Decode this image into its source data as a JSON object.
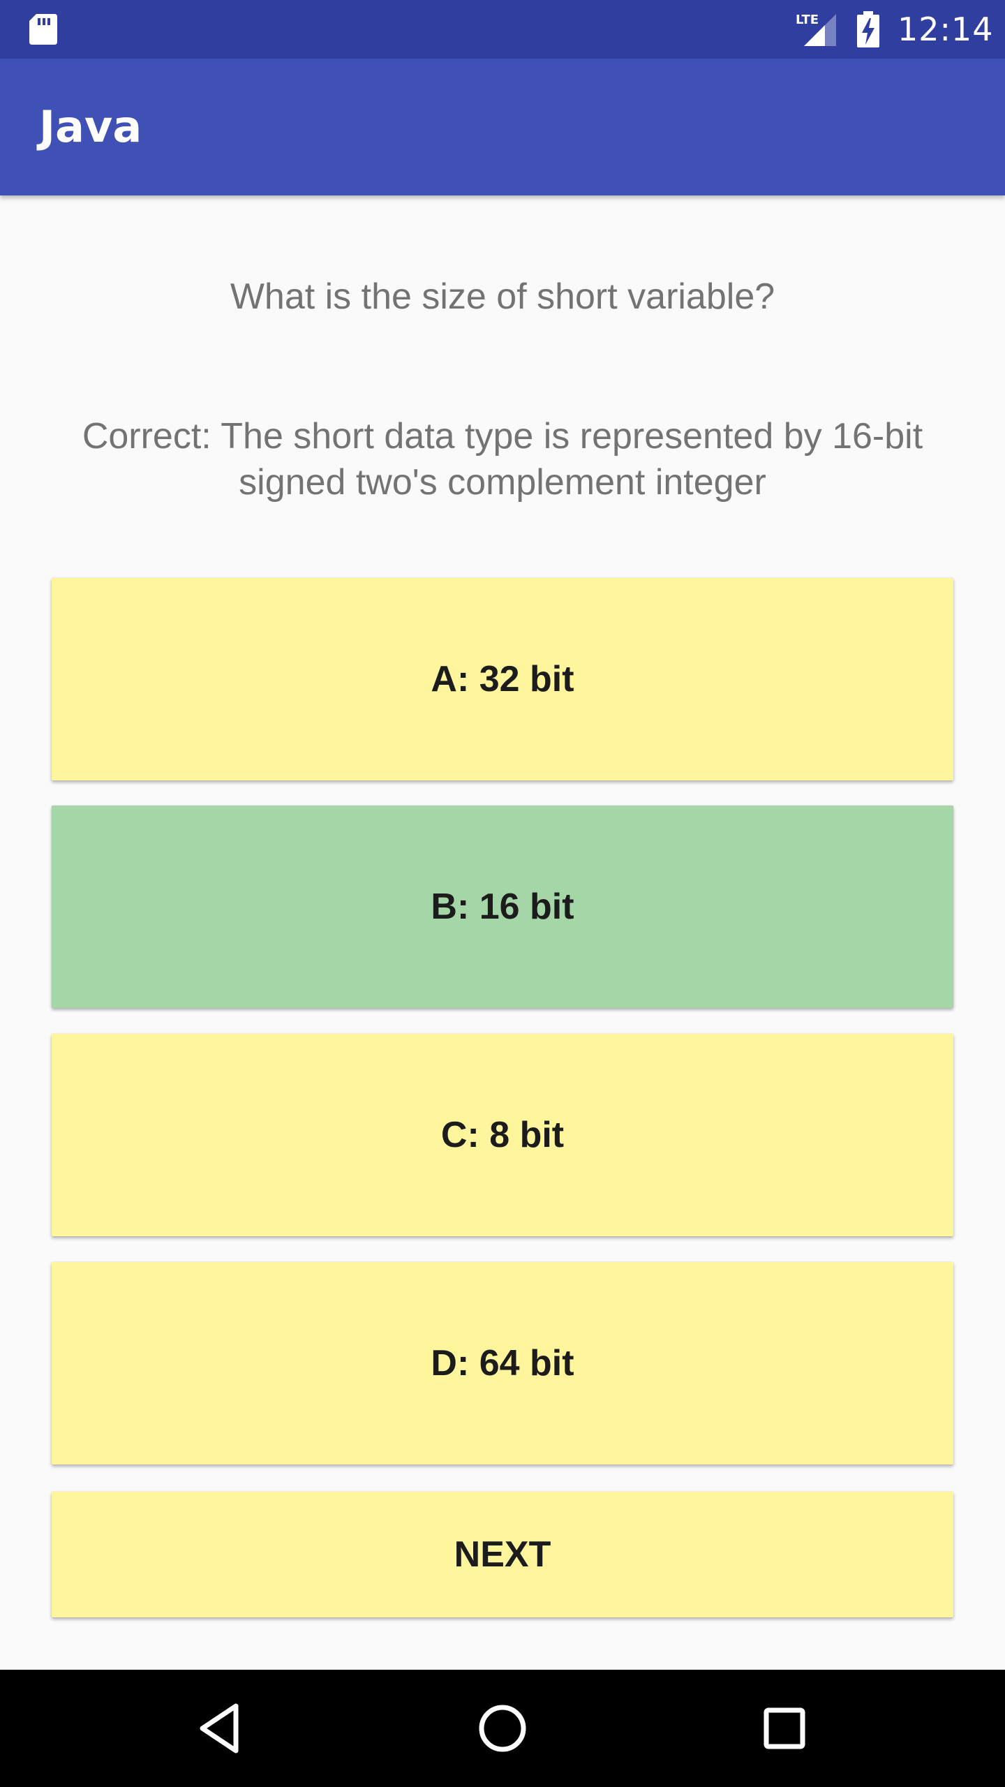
{
  "status_bar": {
    "time": "12:14",
    "network": "LTE",
    "icons": [
      "sd-card-icon",
      "signal-icon",
      "battery-charging-icon"
    ]
  },
  "app_bar": {
    "title": "Java"
  },
  "quiz": {
    "question": "What is the size of short variable?",
    "feedback": "Correct: The short data type is represented by 16-bit signed two's complement integer",
    "answers": [
      {
        "label": "A: 32 bit",
        "color": "#fff59d"
      },
      {
        "label": "B: 16 bit",
        "color": "#a5d6a7"
      },
      {
        "label": "C: 8 bit",
        "color": "#fff59d"
      },
      {
        "label": "D: 64 bit",
        "color": "#fff59d"
      }
    ],
    "next_label": "NEXT",
    "next_color": "#fff59d"
  },
  "nav_bar": {
    "icons": [
      "back-icon",
      "home-icon",
      "recents-icon"
    ]
  }
}
